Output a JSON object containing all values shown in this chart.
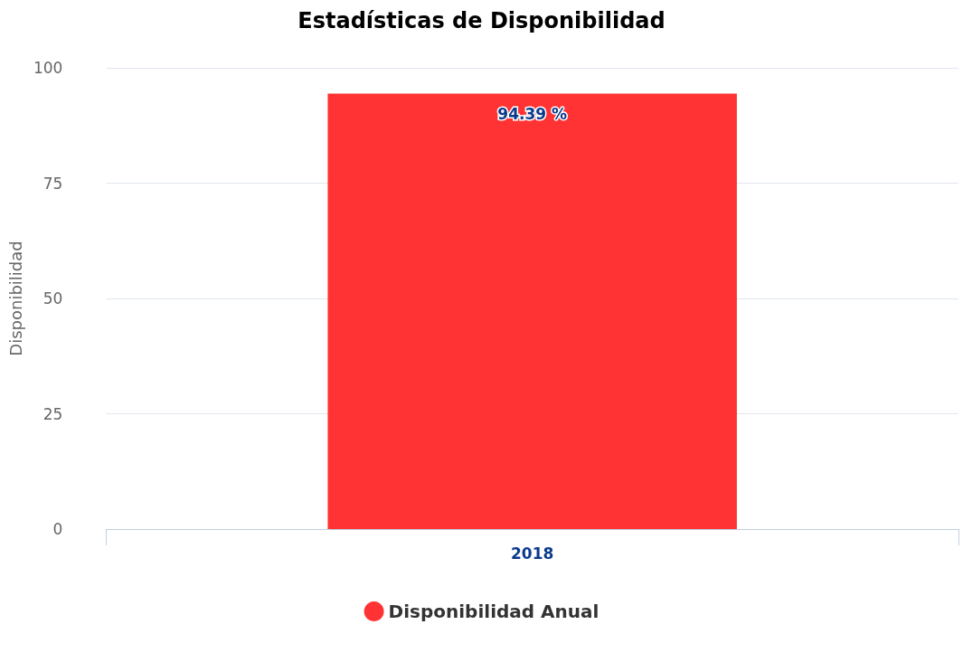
{
  "chart_data": {
    "type": "bar",
    "title": "Estadísticas de Disponibilidad",
    "ylabel": "Disponibilidad",
    "categories": [
      "2018"
    ],
    "series": [
      {
        "name": "Disponibilidad Anual",
        "color": "#ff3333",
        "values": [
          94.39
        ],
        "value_labels": [
          "94.39 %"
        ]
      }
    ],
    "ylim": [
      0,
      100
    ],
    "yticks": [
      0,
      25,
      50,
      75,
      100
    ],
    "grid": "y",
    "legend": "bottom"
  }
}
